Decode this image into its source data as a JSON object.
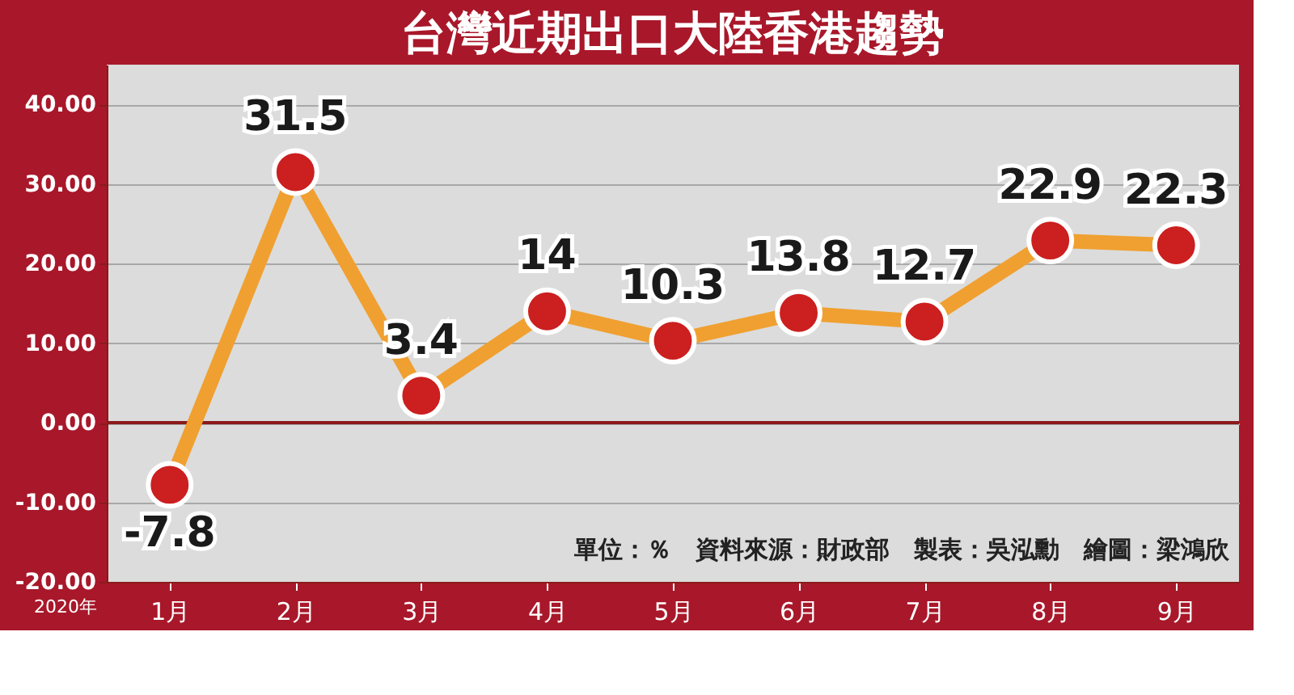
{
  "chart_data": {
    "type": "line",
    "title": "台灣近期出口大陸香港趨勢",
    "categories": [
      "1月",
      "2月",
      "3月",
      "4月",
      "5月",
      "6月",
      "7月",
      "8月",
      "9月"
    ],
    "series": [
      {
        "color": "#f0a030",
        "values": [
          -7.8,
          31.5,
          3.4,
          14,
          10.3,
          13.8,
          12.7,
          22.9,
          22.3
        ]
      }
    ],
    "ylim": [
      -20,
      45
    ],
    "yticks": [
      {
        "value": -20,
        "label": "-20.00"
      },
      {
        "value": -10,
        "label": "-10.00"
      },
      {
        "value": 0,
        "label": "0.00"
      },
      {
        "value": 10,
        "label": "10.00"
      },
      {
        "value": 20,
        "label": "20.00"
      },
      {
        "value": 30,
        "label": "30.00"
      },
      {
        "value": 40,
        "label": "40.00"
      }
    ],
    "ref_lines": [
      {
        "axis": "y",
        "value": 0,
        "color": "#8b1a1a"
      }
    ],
    "annotations": [
      "單位：％　資料來源：財政部　製表：吳泓勳　繪圖：梁鴻欣",
      "2020年"
    ],
    "data_labels": true,
    "grid": "y",
    "marker": "circle",
    "line_style": "solid"
  }
}
